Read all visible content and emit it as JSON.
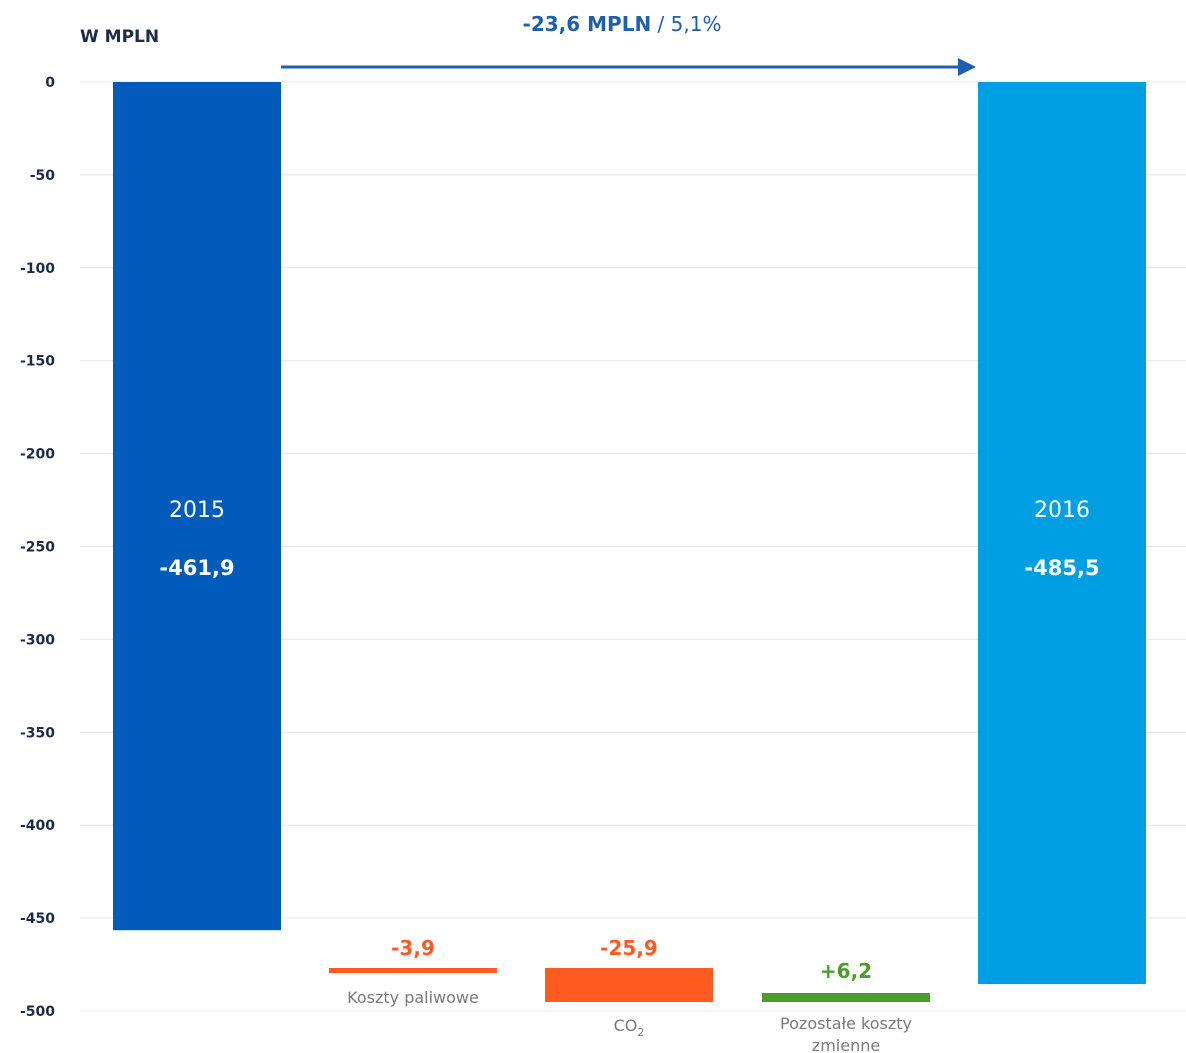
{
  "chart_data": {
    "type": "bar",
    "subtype": "waterfall",
    "unit_label": "W MPLN",
    "ylim": [
      -500,
      0
    ],
    "yticks": [
      0,
      -50,
      -100,
      -150,
      -200,
      -250,
      -300,
      -350,
      -400,
      -450,
      -500
    ],
    "grid": true,
    "summary": {
      "value_text": "-23,6 MPLN",
      "pct_text": " / 5,1%"
    },
    "totals": [
      {
        "label": "2015",
        "value": -461.9,
        "value_text": "-461,9",
        "color": "#005bbb"
      },
      {
        "label": "2016",
        "value": -485.5,
        "value_text": "-485,5",
        "color": "#009fe3"
      }
    ],
    "changes": [
      {
        "label": "Koszty paliwowe",
        "value": -3.9,
        "value_text": "-3,9",
        "color": "#ff5a1f"
      },
      {
        "label": "CO",
        "label_sub": "2",
        "value": -25.9,
        "value_text": "-25,9",
        "color": "#ff5a1f"
      },
      {
        "label": "Pozostałe koszty",
        "label2": "zmienne",
        "value": 6.2,
        "value_text": "+6,2",
        "color": "#4a9c2d"
      }
    ]
  },
  "colors": {
    "axis_text": "#1c2b4a",
    "arrow": "#1d5fb0",
    "grid": "#e3e8f0",
    "category_text": "#7a7a7a"
  }
}
